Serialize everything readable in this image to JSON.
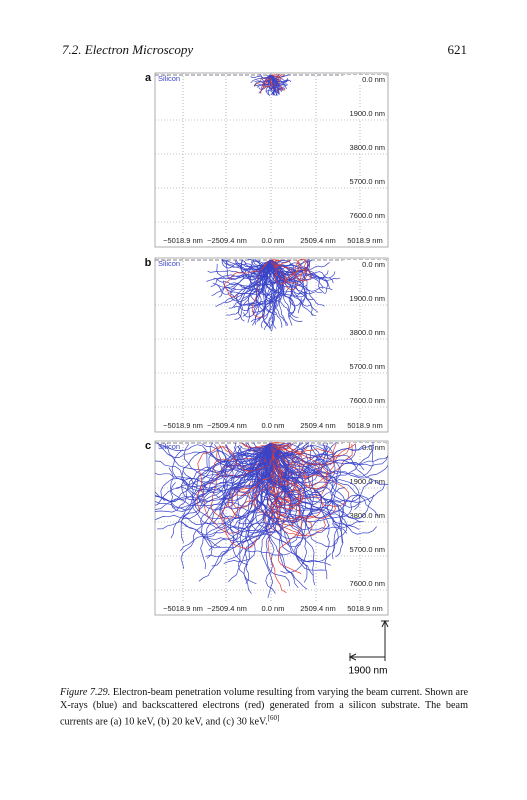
{
  "header": {
    "section": "7.2. Electron Microscopy",
    "page": "621"
  },
  "figure": {
    "panels": [
      {
        "label": "a",
        "material": "Silicon"
      },
      {
        "label": "b",
        "material": "Silicon"
      },
      {
        "label": "c",
        "material": "Silicon"
      }
    ],
    "depth_labels": [
      "0.0 nm",
      "1900.0 nm",
      "3800.0 nm",
      "5700.0 nm",
      "7600.0 nm"
    ],
    "x_labels": [
      "−5018.9 nm",
      "−2509.4 nm",
      "0.0 nm",
      "2509.4 nm",
      "5018.9 nm"
    ],
    "scale_bar": "1900 nm"
  },
  "caption": {
    "label": "Figure 7.29.",
    "text": " Electron-beam penetration volume resulting from varying the beam current. Shown are X-rays (blue) and backscattered electrons (red) generated from a silicon substrate. The beam currents are (a) 10 keV, (b) 20 keV, and (c) 30 keV.",
    "ref": "[60]"
  }
}
